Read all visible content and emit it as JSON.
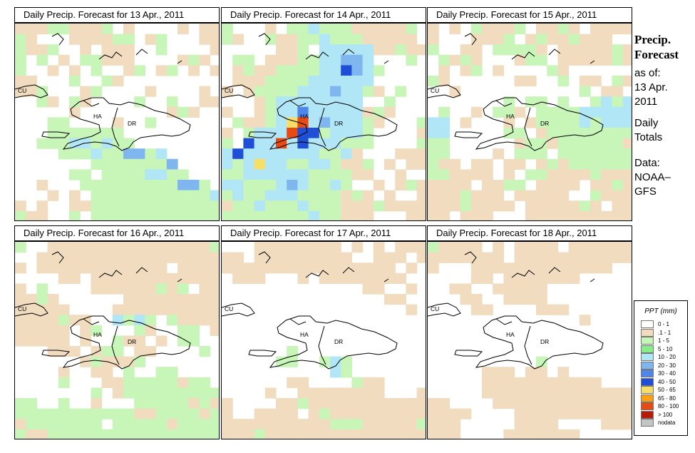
{
  "panels": [
    {
      "title": "Daily Precip. Forecast for  13 Apr., 2011"
    },
    {
      "title": "Daily Precip. Forecast for  14 Apr., 2011"
    },
    {
      "title": "Daily Precip. Forecast for  15 Apr., 2011"
    },
    {
      "title": "Daily Precip. Forecast for  16 Apr., 2011"
    },
    {
      "title": "Daily Precip. Forecast for  17 Apr., 2011"
    },
    {
      "title": "Daily Precip. Forecast for  18 Apr., 2011"
    }
  ],
  "map_labels": {
    "cu": "CU",
    "ha": "HA",
    "dr": "DR"
  },
  "side": {
    "heading1": "Precip.",
    "heading2": "Forecast",
    "asof": "as of:",
    "date1": "13 Apr.",
    "date2": "2011",
    "totals1": "Daily",
    "totals2": "Totals",
    "data1": "Data:",
    "data2": "NOAA–",
    "data3": "GFS"
  },
  "legend": {
    "title": "PPT (mm)",
    "items": [
      {
        "label": "0 - 1",
        "color": "#ffffff"
      },
      {
        "label": ".1 - 1",
        "color": "#f2dcbf"
      },
      {
        "label": "1 - 5",
        "color": "#c8f5b8"
      },
      {
        "label": "5 - 10",
        "color": "#88ee88"
      },
      {
        "label": "10 - 20",
        "color": "#b0e6f5"
      },
      {
        "label": "20 - 30",
        "color": "#7fb6f0"
      },
      {
        "label": "30 - 40",
        "color": "#4f86ea"
      },
      {
        "label": "40 - 50",
        "color": "#1f4fd6"
      },
      {
        "label": "50 - 65",
        "color": "#f5df66"
      },
      {
        "label": "65 - 80",
        "color": "#f7a018"
      },
      {
        "label": "80 - 100",
        "color": "#e74a12"
      },
      {
        "label": "> 100",
        "color": "#b81a0a"
      },
      {
        "label": "nodata",
        "color": "#c4c4c4"
      }
    ]
  },
  "grids": [
    "TTTGGTTTGWTWWWWTWTTGTWWWTTTTGGWTGWWWTTGTTGWWTWTTTWWGWWWWTGWGWTWGGTTTWWWWTGTWGWWTWTWGWWTGWTGWTWTTTWWWGWWGTWWWWWWWWWTTGWWWTGWWWWTWWWWTWWWGTWGTWWWWGWWGWWTTWWWWWTWWWWWWWWTGTWWWWWGGWWWWTWWGWWWWWWWWWGGGGGGGWWWWWWWWWWWGGGLLGLGGWWWWWWWWWWWWGGGLGGBBGLWWWWWWWWWWWWGGGGGGGBWWWWWWWWWGGWGGGGLLGGWWWWWTWWWGGGGGGGGGBBGWWWWTWTWGGGGGGGGGGGLTWTWWTTGGGGGGGGGGGGGTTWWGWGGGGGGGGGGGGGTWWWWTGGGGGGGGGGGGGWWWTGTGGGGGGGGGGGGGWTWTGGWGGGGGGGGGGGGWWWGGGTGGGGGGGGGGGGT",
    "GWWWTWGGLGGGTTTTTGWGTWWGTTGGLGGGTTTTTWWWWWWTTGWLLLLLTTGTTWGGWTTTGGLLBBLWWWGWWTGTTGGGGLLDBLGWWWWWTTTGGGGLLLLLLWWWWWTWTGGGGLLLBLLGTWGWWWWWTGLLLLLLLLWWGWWWTWWTGLLMLLLLLTGTWWWWGTTGLYRLBLLLGTWWWGTWGLLLRDDGLLLGWWWWTGWDLLRLDLLLGGGWWWWGLDLLLLLLLGGLTWWWTTTLGLYLLGGLLGTTGWTWTTGGLLLLLLGGGGTTWWTWWLLGGGLBLGGLGWWTWTGTGLGGLLLGGGGTGTWTWWTTGGLGGGLGGGTTTGTTTTGGGGGGGGLGGTTTWWWTTGGGGGGGGGGGGTGGGW",
    "TWTWGTTTGWTTGTWTTTTTWWWTTTGWTGTTGTTTWWGWWTTWGGGGTWTTTTTGTWGTGTWWWTGGWTTTTTGTWTWTGWTWWWWGTWWWWWWGTWWWWWWTTWWGWTTWGTWWTWWWWWWWWWWWGWTTWWWWWWWWGWGGWGWWGLGLWGWWTWGGTWGGGGLLLLLLLWTWWWTWTGGGGLGLLLLLWWWWWGGWTGGGGGGGGGGWWWWWWTGGTGGGGGGTGGWWWWTWGGGWGGGGGGGGTTWTTWTTWTGTGGGGGGGGTTTTWTWGGTTTTGTTTTTTTWTTGGWTTTTWTTGTTTTGTTTWTTTTTWWGTTTTTTGTTTTWTTTTTGTWTTTTWTTTWWWTTTTTTTTTTTTTWTTGTTGTTTTWTTWWTT",
    "GWWTTTTTTTTTTTTTTTGWWTTTTTTTTTTTTTTTTTTWTTTTTTTTTTTTWTTTTWWWWTTWTTTTTTTTTTTTTWGWWWWTTTTTTGTGWTTTTGTWWWWWWTTTTTTTTTTTTTTWWWWTTTTTTTTTTTTTTGTTWWLGLGWGTTTTTTTTTWTGWWWGTWWGGWTTTTTTWTWWGTTWTWGGWWWWWTTTWTGGWTTWWWWGWWWWWWWTGTTTGWWWWWWWWWWWTWWTTWGWWGGWWWWWWWWGWWWTTGGGGGTGGWWWWWWWWGWTGGGGGGGGGGGWWGWWTWWWGGGGGTGTGGGGGGGGGGGTTGGGGTGTGGGGGGGWGGGGGTGGGGGTTGGGGGGGGGGGGGGGGGGGTGGGGGGTT",
    "WWWTTTTTTTTWTWTWTTTTTWTTTTTTTTTWWTTTWTTTTTTTTTTTTTTTTTWTWWTTTWWWTWTTTTTTTTWWWWWWWWWWWWWWWTTWWTWWWWWWWWWWWWWWWWTTWWWWWWWWWWWWWWWWWWWTWWWWWWWWWWWWWWWWWWWWWWWWWWWWWWWWWWWWWWWWWWWWWWWWWWWWWWWWWWWWWWWWGWWWWWWWWWWWWWWWWWGGWWGLGWWWWWWWWWWWWWWWWWLGWWWWWWWWWWWWWTTWWWWGTTWWWWWWWWTWWTTTTTTTTWWWTTWWWWTTGTTTTTTTTTTTTWWTTTTWTGTTTTTTTTTTTTTTTTTTTGGGTTTTTGTTTGTTTTTTTTTTTTTTTTGTTTTTTTTTTTTTTTTTTTTTTTTTTT",
    "GTTTTWTWTTTTWTTTTTTTTTTTTTWTTTTTTTTTTTTWWWTTTTTTTTTTTTTWWWWWWTTWTTTTTTTWWWWWWWTTWWTTTTTWWWWWWWWWWWTTWWTTTTWWWWWWWWWWWWTTWWWWTTTWWWWWWWWWWWWWWWWWWWWTWWWWWWWWWWWWWWWWWWWWWWWWWWWWWWWWWWWWWWWWWWWWWWWWWWWWWWWWWWWWWWWWWWWWWWWGWWWWWWWWWWWWWTTTWTTWTWWWWWWWWWWWTTTTTTTTTTTWWWWWWWWTTTTTTTTTTTTTTTTWWWWTTTTTTTTTTTTTTTTTWWWWTTTTTTTTTTTTTTWWWWWTTTTWWWWTTTTTTWWWWTTTTTTTWWWWWTTTTWWTTTTTTTT"
  ]
}
